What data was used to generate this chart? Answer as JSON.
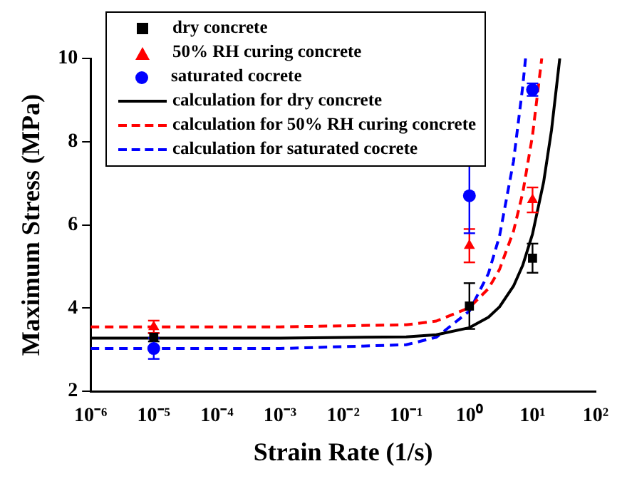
{
  "chart_data": {
    "type": "scatter",
    "xlabel": "Strain Rate (1/s)",
    "ylabel": "Maximum Stress (MPa)",
    "log": "x",
    "xlim": [
      1e-06,
      100
    ],
    "xticks": [
      {
        "value": 1e-06,
        "label": "10⁻⁶"
      },
      {
        "value": 1e-05,
        "label": "10⁻⁵"
      },
      {
        "value": 0.0001,
        "label": "10⁻⁴"
      },
      {
        "value": 0.001,
        "label": "10⁻³"
      },
      {
        "value": 0.01,
        "label": "10⁻²"
      },
      {
        "value": 0.1,
        "label": "10⁻¹"
      },
      {
        "value": 1,
        "label": "10⁰"
      },
      {
        "value": 10,
        "label": "10¹"
      },
      {
        "value": 100,
        "label": "10²"
      }
    ],
    "ylim": [
      2,
      10
    ],
    "yticks": [
      2,
      4,
      6,
      8,
      10
    ],
    "grid": false,
    "legend": "top left",
    "series": [
      {
        "name": "dry concrete",
        "type": "scatter",
        "marker": "square",
        "color": "#000000",
        "x": [
          1e-05,
          1,
          10
        ],
        "values": [
          3.3,
          4.05,
          5.2
        ],
        "errors": [
          0.1,
          0.55,
          0.35
        ]
      },
      {
        "name": "50% RH curing concrete",
        "type": "scatter",
        "marker": "triangle",
        "color": "#ff0000",
        "x": [
          1e-05,
          1,
          10
        ],
        "values": [
          3.55,
          5.5,
          6.6
        ],
        "errors": [
          0.15,
          0.4,
          0.3
        ]
      },
      {
        "name": "saturated cocrete",
        "type": "scatter",
        "marker": "circle",
        "color": "#0000ff",
        "x": [
          1e-05,
          1,
          10
        ],
        "values": [
          3.03,
          6.7,
          9.25
        ],
        "errors": [
          0.25,
          0.9,
          0.15
        ]
      },
      {
        "name": "calculation for dry concrete",
        "type": "line",
        "line_style": "solid",
        "color": "#000000",
        "x": [
          1e-06,
          0.001,
          0.1,
          0.3,
          1,
          2,
          3,
          5,
          7,
          10,
          15,
          20,
          27
        ],
        "values": [
          3.28,
          3.28,
          3.31,
          3.36,
          3.53,
          3.78,
          4.03,
          4.53,
          5.03,
          5.78,
          7.03,
          8.28,
          10
        ]
      },
      {
        "name": "calculation for 50% RH curing concrete",
        "type": "line",
        "line_style": "dashed",
        "color": "#ff0000",
        "x": [
          1e-06,
          0.001,
          0.1,
          0.3,
          1,
          2,
          3,
          5,
          7,
          10,
          14
        ],
        "values": [
          3.55,
          3.55,
          3.6,
          3.69,
          4.01,
          4.47,
          4.93,
          5.85,
          6.77,
          8.15,
          10
        ]
      },
      {
        "name": "calculation for saturated cocrete",
        "type": "line",
        "line_style": "dashed",
        "color": "#0000ff",
        "x": [
          1e-06,
          0.001,
          0.1,
          0.3,
          1,
          2,
          3,
          5,
          7,
          7.75
        ],
        "values": [
          3.03,
          3.03,
          3.12,
          3.3,
          3.93,
          4.83,
          5.73,
          7.53,
          9.33,
          10
        ]
      }
    ]
  }
}
